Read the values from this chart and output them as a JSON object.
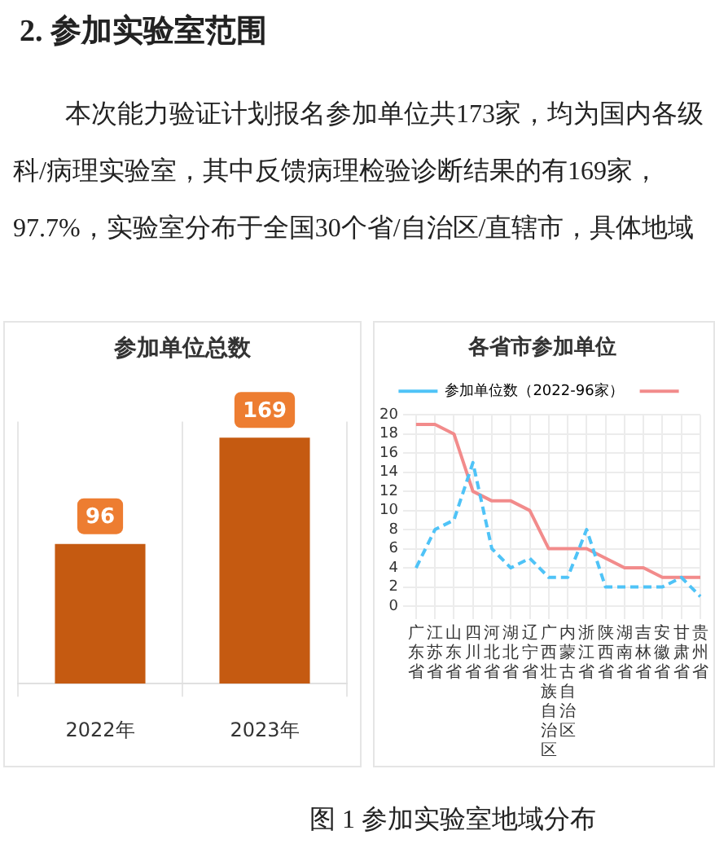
{
  "chart_data": [
    {
      "type": "other",
      "title": "2.  参加实验室范围",
      "annotations": [
        "本次能力验证计划报名参加单位共173家，均为国内各级",
        "科/病理实验室，其中反馈病理检验诊断结果的有169家，",
        "97.7%，实验室分布于全国30个省/自治区/直辖市，具体地域",
        "图 1 参加实验室地域分布"
      ]
    },
    {
      "type": "bar",
      "title": "参加单位总数",
      "categories": [
        "2022年",
        "2023年"
      ],
      "values": [
        96,
        169
      ],
      "color": "#c55a11",
      "data_labels": true,
      "grid": "x",
      "legend": false
    },
    {
      "type": "line",
      "title": "各省市参加单位",
      "categories": [
        "广东省",
        "江苏省",
        "山东省",
        "四川省",
        "河北省",
        "湖北省",
        "辽宁省",
        "广西壮族自治区",
        "内蒙古自治区",
        "浙江省",
        "陕西省",
        "湖南省",
        "吉林省",
        "安徽省",
        "甘肃省",
        "贵州省"
      ],
      "series": [
        {
          "name": "参加单位数（2022-96家）",
          "color": "#4fc3f7",
          "line_style": "dashed",
          "values": [
            4,
            8,
            9,
            15,
            6,
            4,
            5,
            3,
            3,
            8,
            2,
            2,
            2,
            2,
            3,
            1
          ]
        },
        {
          "color": "#f28b8b",
          "line_style": "solid",
          "values": [
            19,
            19,
            18,
            12,
            11,
            11,
            10,
            6,
            6,
            6,
            5,
            4,
            4,
            3,
            3,
            3
          ]
        }
      ],
      "ylim": [
        0,
        20
      ],
      "yticks": [
        0,
        2,
        4,
        6,
        8,
        10,
        12,
        14,
        16,
        18,
        20
      ],
      "grid": true,
      "legend": "top",
      "marker": "none"
    }
  ]
}
